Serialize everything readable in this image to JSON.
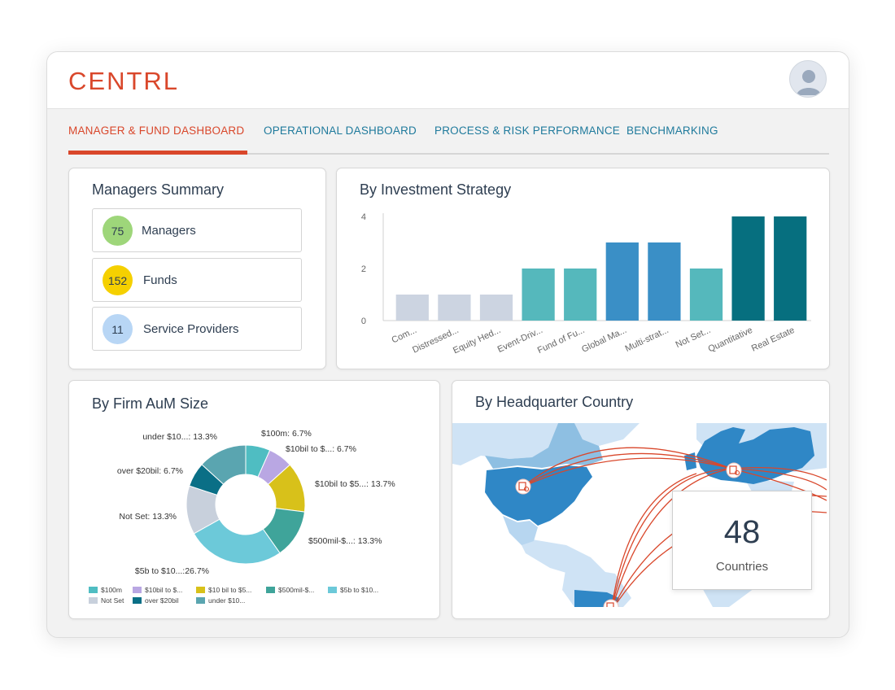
{
  "app": {
    "logo_text": "CENTRL",
    "brand_color": "#d9472b",
    "link_color": "#1f7a9c"
  },
  "header": {
    "avatar_icon": "user-avatar-icon"
  },
  "tabs": [
    {
      "label": "MANAGER & FUND DASHBOARD",
      "active": true
    },
    {
      "label": "OPERATIONAL DASHBOARD",
      "active": false
    },
    {
      "label": "PROCESS & RISK PERFORMANCE",
      "active": false
    },
    {
      "label": "BENCHMARKING",
      "active": false
    }
  ],
  "managers_summary": {
    "title": "Managers Summary",
    "items": [
      {
        "count": "75",
        "label": "Managers",
        "color": "#9ed67a"
      },
      {
        "count": "152",
        "label": "Funds",
        "color": "#f5d000"
      },
      {
        "count": "11",
        "label": "Service Providers",
        "color": "#b8d6f5"
      }
    ]
  },
  "investment_strategy": {
    "title": "By Investment Strategy",
    "chart_data": {
      "type": "bar",
      "categories": [
        "Com...",
        "Distressed...",
        "Equity Hed...",
        "Event-Driv...",
        "Fund of Fu...",
        "Global Ma...",
        "Multi-strat...",
        "Not Set...",
        "Quantitative",
        "Real Estate"
      ],
      "values": [
        1,
        1,
        1,
        2,
        2,
        3,
        3,
        2,
        4,
        4
      ],
      "colors": [
        "#ccd4e1",
        "#ccd4e1",
        "#ccd4e1",
        "#55b8bc",
        "#55b8bc",
        "#3a8fc6",
        "#3a8fc6",
        "#55b8bc",
        "#066f7f",
        "#066f7f"
      ],
      "yticks": [
        "0",
        "2",
        "4"
      ],
      "ylim": [
        0,
        4
      ],
      "grid": false
    }
  },
  "aum_size": {
    "title": "By Firm AuM Size",
    "chart_data": {
      "type": "pie",
      "slices": [
        {
          "label": "$100m: 6.7%",
          "legend": "$100m",
          "value": 6.7,
          "color": "#4fbdc2"
        },
        {
          "label": "$10bil to $...: 6.7%",
          "legend": "$10bil to $...",
          "value": 6.7,
          "color": "#b9a7e3"
        },
        {
          "label": "$10bil to $5...: 13.7%",
          "legend": "$10 bil to $5...",
          "value": 13.7,
          "color": "#d8c11a"
        },
        {
          "label": "$500mil-$...: 13.3%",
          "legend": "$500mil-$...",
          "value": 13.3,
          "color": "#3fa49a"
        },
        {
          "label": "$5b to $10...:26.7%",
          "legend": "$5b to $10...",
          "value": 26.7,
          "color": "#6cc9d9"
        },
        {
          "label": "Not Set: 13.3%",
          "legend": "Not Set",
          "value": 13.3,
          "color": "#c8d0dc"
        },
        {
          "label": "over $20bil: 6.7%",
          "legend": "over $20bil",
          "value": 6.7,
          "color": "#0a6f86"
        },
        {
          "label": "under $10...: 13.3%",
          "legend": "under $10...",
          "value": 13.3,
          "color": "#5aa5b0"
        }
      ]
    }
  },
  "hq_country": {
    "title": "By Headquarter Country",
    "countries_value": "48",
    "countries_label": "Countries",
    "marker_icon": "building-marker-icon"
  }
}
